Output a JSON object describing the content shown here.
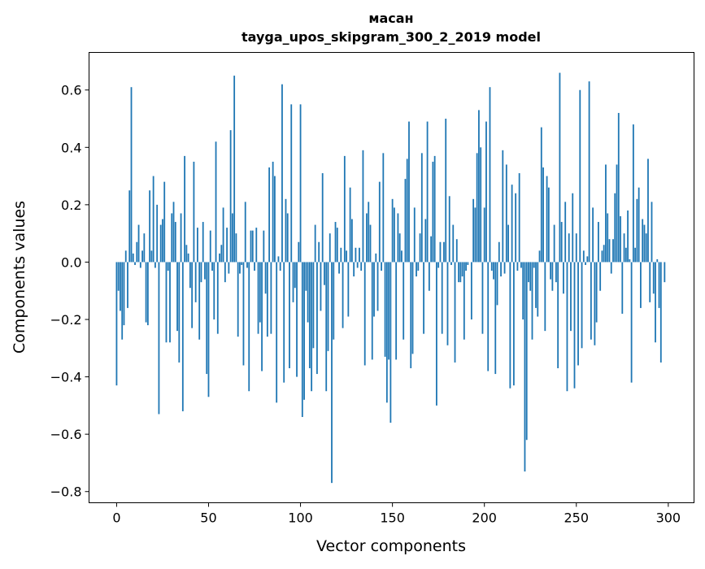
{
  "chart_data": {
    "type": "bar",
    "title": "масан",
    "subtitle": "tayga_upos_skipgram_300_2_2019 model",
    "xlabel": "Vector components",
    "ylabel": "Components values",
    "xlim": [
      -15,
      314
    ],
    "ylim": [
      -0.839,
      0.731
    ],
    "xticks": [
      0,
      50,
      100,
      150,
      200,
      250,
      300
    ],
    "xtick_labels": [
      "0",
      "50",
      "100",
      "150",
      "200",
      "250",
      "300"
    ],
    "yticks": [
      -0.8,
      -0.6,
      -0.4,
      -0.2,
      0.0,
      0.2,
      0.4,
      0.6
    ],
    "ytick_labels": [
      "−0.8",
      "−0.6",
      "−0.4",
      "−0.2",
      "0.0",
      "0.2",
      "0.4",
      "0.6"
    ],
    "grid": false,
    "bar_color": "#1f77b4",
    "values": [
      -0.43,
      -0.1,
      -0.17,
      -0.27,
      -0.22,
      0.04,
      -0.16,
      0.25,
      0.61,
      0.03,
      -0.01,
      0.07,
      0.13,
      -0.02,
      0.04,
      0.1,
      -0.21,
      -0.22,
      0.25,
      0.04,
      0.3,
      -0.02,
      0.2,
      -0.53,
      0.13,
      0.15,
      0.28,
      -0.28,
      -0.03,
      -0.28,
      0.17,
      0.21,
      0.14,
      -0.24,
      -0.35,
      0.17,
      -0.52,
      0.37,
      0.06,
      0.03,
      -0.09,
      -0.23,
      0.35,
      -0.14,
      0.12,
      -0.27,
      -0.07,
      0.14,
      -0.06,
      -0.39,
      -0.47,
      0.11,
      -0.03,
      -0.2,
      0.42,
      -0.25,
      0.03,
      0.06,
      0.19,
      -0.07,
      0.12,
      -0.04,
      0.46,
      0.17,
      0.65,
      0.1,
      -0.26,
      -0.04,
      -0.01,
      -0.36,
      0.21,
      -0.02,
      -0.45,
      0.11,
      0.11,
      -0.03,
      0.12,
      -0.25,
      -0.21,
      -0.38,
      0.11,
      -0.11,
      -0.26,
      0.33,
      -0.25,
      0.35,
      0.3,
      -0.49,
      0.02,
      -0.03,
      0.62,
      -0.42,
      0.22,
      0.17,
      -0.37,
      0.55,
      -0.14,
      -0.09,
      -0.4,
      0.07,
      0.55,
      -0.54,
      -0.48,
      -0.1,
      -0.21,
      -0.37,
      -0.45,
      -0.3,
      0.13,
      -0.39,
      0.07,
      -0.17,
      0.31,
      -0.08,
      -0.45,
      -0.31,
      0.1,
      -0.77,
      -0.27,
      0.14,
      0.12,
      -0.04,
      0.05,
      -0.23,
      0.37,
      0.04,
      -0.19,
      0.26,
      0.15,
      -0.05,
      0.05,
      -0.02,
      0.05,
      -0.03,
      0.39,
      -0.36,
      0.17,
      0.21,
      0.13,
      -0.34,
      -0.19,
      0.03,
      -0.17,
      0.28,
      -0.03,
      0.38,
      -0.33,
      -0.49,
      -0.34,
      -0.56,
      0.22,
      0.19,
      -0.34,
      0.17,
      0.1,
      0.04,
      -0.27,
      0.29,
      0.36,
      0.49,
      -0.37,
      -0.32,
      0.19,
      -0.05,
      -0.03,
      0.1,
      0.38,
      -0.25,
      0.15,
      0.49,
      -0.1,
      0.09,
      0.35,
      0.37,
      -0.5,
      -0.02,
      0.07,
      -0.25,
      0.07,
      0.5,
      -0.29,
      0.23,
      -0.01,
      0.13,
      -0.35,
      0.08,
      -0.07,
      -0.07,
      -0.05,
      -0.27,
      -0.03,
      -0.01,
      0.0,
      -0.2,
      0.22,
      0.19,
      0.38,
      0.53,
      0.4,
      -0.25,
      0.19,
      0.49,
      -0.38,
      0.61,
      -0.03,
      -0.06,
      -0.39,
      -0.15,
      0.07,
      -0.05,
      0.39,
      -0.04,
      0.34,
      0.13,
      -0.44,
      0.27,
      -0.43,
      0.24,
      -0.03,
      0.31,
      -0.02,
      -0.2,
      -0.73,
      -0.62,
      -0.07,
      -0.1,
      -0.27,
      -0.02,
      -0.16,
      -0.19,
      0.04,
      0.47,
      0.33,
      -0.24,
      0.3,
      0.26,
      -0.06,
      -0.1,
      0.13,
      -0.07,
      -0.37,
      0.66,
      0.14,
      -0.11,
      0.21,
      -0.45,
      0.1,
      -0.24,
      0.24,
      -0.44,
      0.1,
      -0.36,
      0.6,
      -0.3,
      0.04,
      -0.01,
      0.02,
      0.63,
      -0.27,
      0.19,
      -0.29,
      -0.21,
      0.14,
      -0.1,
      0.04,
      0.06,
      0.34,
      0.17,
      0.08,
      -0.04,
      0.08,
      0.24,
      0.34,
      0.52,
      0.16,
      -0.18,
      0.1,
      0.05,
      0.18,
      0.01,
      -0.42,
      0.48,
      0.05,
      0.22,
      0.26,
      -0.16,
      0.15,
      0.13,
      0.1,
      0.36,
      -0.14,
      0.21,
      -0.11,
      -0.28,
      0.01,
      -0.16,
      -0.35,
      0.0,
      -0.07,
      0.0
    ]
  }
}
